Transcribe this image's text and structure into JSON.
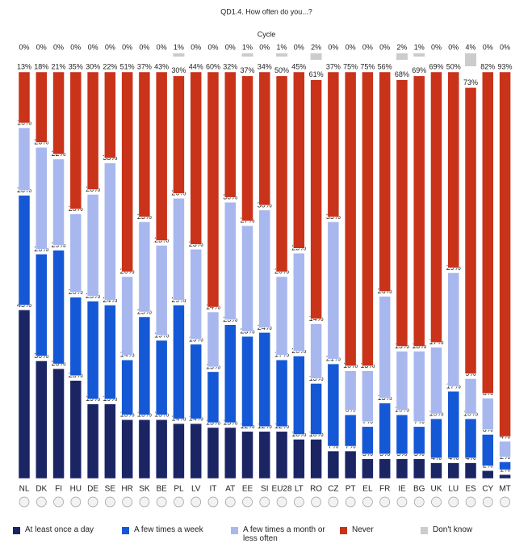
{
  "chart_data": {
    "type": "stacked-bar",
    "title": "QD1.4. How often do you...?",
    "subtitle": "Cycle",
    "categories": [
      "NL",
      "DK",
      "FI",
      "HU",
      "DE",
      "SE",
      "HR",
      "SK",
      "BE",
      "PL",
      "LV",
      "IT",
      "AT",
      "EE",
      "SI",
      "EU28",
      "LT",
      "RO",
      "CZ",
      "PT",
      "EL",
      "FR",
      "IE",
      "BG",
      "UK",
      "LU",
      "ES",
      "CY",
      "MT"
    ],
    "series": [
      {
        "name": "At least once a day",
        "color": "#1b2564",
        "values": [
          43,
          30,
          28,
          25,
          19,
          19,
          15,
          15,
          15,
          14,
          14,
          13,
          13,
          12,
          12,
          12,
          10,
          10,
          7,
          7,
          5,
          5,
          5,
          5,
          4,
          4,
          4,
          2,
          1
        ],
        "value_labels": [
          "43%",
          "30%",
          "28%",
          "25%",
          "19%",
          "19%",
          "15%",
          "15%",
          "15%",
          "14%",
          "14%",
          "13%",
          "13%",
          "12%",
          "12%",
          "12%",
          "10%",
          "10%",
          "7%",
          "7%",
          "5%",
          "5%",
          "5%",
          "5%",
          "4%",
          "4%",
          "4%",
          "2%",
          "1%"
        ]
      },
      {
        "name": "A few times a week",
        "color": "#1558d6",
        "values": [
          28,
          26,
          29,
          20,
          25,
          24,
          14,
          25,
          19,
          29,
          19,
          13,
          25,
          23,
          24,
          17,
          20,
          13,
          21,
          8,
          7,
          13,
          10,
          7,
          10,
          17,
          10,
          8,
          2
        ],
        "value_labels": [
          "28%",
          "26%",
          "29%",
          "20%",
          "25%",
          "24%",
          "14%",
          "25%",
          "19%",
          "29%",
          "19%",
          "13%",
          "25%",
          "23%",
          "24%",
          "17%",
          "20%",
          "13%",
          "21%",
          "8%",
          "7%",
          "13%",
          "10%",
          "7%",
          "10%",
          "17%",
          "10%",
          "8%",
          "2%"
        ]
      },
      {
        "name": "A few times a month or less often",
        "color": "#a8b8ef",
        "values": [
          16,
          26,
          22,
          20,
          26,
          35,
          20,
          23,
          23,
          26,
          23,
          14,
          30,
          27,
          30,
          20,
          25,
          14,
          35,
          10,
          13,
          26,
          15,
          18,
          17,
          29,
          9,
          8,
          4
        ],
        "value_labels": [
          "16%",
          "26%",
          "22%",
          "20%",
          "26%",
          "35%",
          "20%",
          "23%",
          "23%",
          "26%",
          "23%",
          "14%",
          "30%",
          "27%",
          "30%",
          "20%",
          "25%",
          "14%",
          "35%",
          "10%",
          "13%",
          "26%",
          "15%",
          "18%",
          "17%",
          "29%",
          "9%",
          "8%",
          "4%"
        ]
      },
      {
        "name": "Never",
        "color": "#c9331a",
        "values": [
          13,
          18,
          21,
          35,
          30,
          22,
          51,
          37,
          43,
          30,
          44,
          60,
          32,
          37,
          34,
          50,
          45,
          61,
          37,
          75,
          75,
          56,
          68,
          69,
          69,
          50,
          73,
          82,
          93
        ],
        "value_labels": [
          "13%",
          "18%",
          "21%",
          "35%",
          "30%",
          "22%",
          "51%",
          "37%",
          "43%",
          "30%",
          "44%",
          "60%",
          "32%",
          "37%",
          "34%",
          "50%",
          "45%",
          "61%",
          "37%",
          "75%",
          "75%",
          "56%",
          "68%",
          "69%",
          "69%",
          "50%",
          "73%",
          "82%",
          "93%"
        ]
      },
      {
        "name": "Don't know",
        "color": "#cccccc",
        "values": [
          0,
          0,
          0,
          0,
          0,
          0,
          0,
          0,
          0,
          1,
          0,
          0,
          0,
          1,
          0,
          1,
          0,
          2,
          0,
          0,
          0,
          0,
          2,
          1,
          0,
          0,
          4,
          0,
          0
        ],
        "value_labels": [
          "0%",
          "0%",
          "0%",
          "0%",
          "0%",
          "0%",
          "0%",
          "0%",
          "0%",
          "1%",
          "0%",
          "0%",
          "0%",
          "1%",
          "0%",
          "1%",
          "0%",
          "2%",
          "0%",
          "0%",
          "0%",
          "0%",
          "2%",
          "1%",
          "0%",
          "0%",
          "4%",
          "0%",
          "0%"
        ]
      }
    ]
  }
}
